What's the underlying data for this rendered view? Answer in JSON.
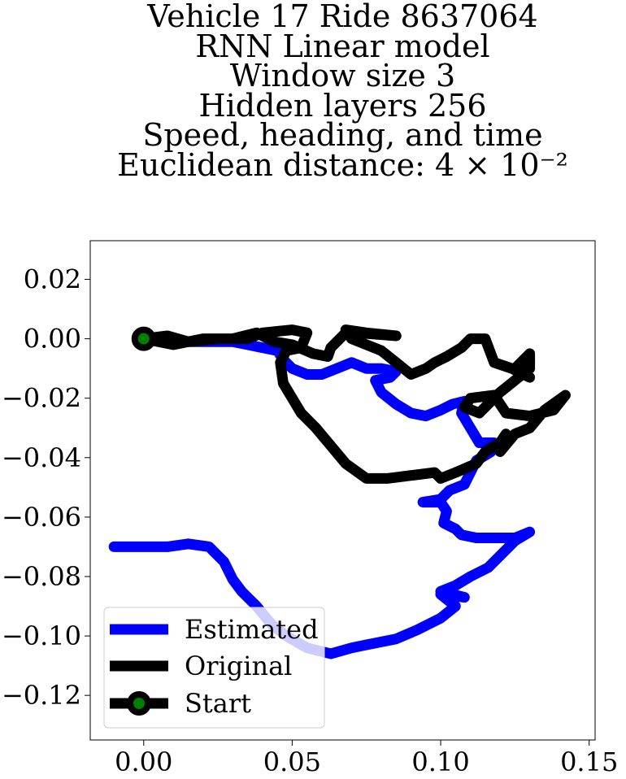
{
  "chart_data": {
    "type": "line",
    "title_lines": [
      "Vehicle 17 Ride 8637064",
      "RNN Linear model",
      "Window size 3",
      "Hidden layers 256",
      "Speed, heading, and time",
      "Euclidean distance: 4 × 10⁻²"
    ],
    "xlabel": "",
    "ylabel": "",
    "xlim": [
      -0.018,
      0.152
    ],
    "ylim": [
      -0.135,
      0.033
    ],
    "xticks": [
      0.0,
      0.05,
      0.1,
      0.15
    ],
    "xtick_labels": [
      "0.00",
      "0.05",
      "0.10",
      "0.15"
    ],
    "yticks": [
      0.02,
      0.0,
      -0.02,
      -0.04,
      -0.06,
      -0.08,
      -0.1,
      -0.12
    ],
    "ytick_labels": [
      "0.02",
      "0.00",
      "−0.02",
      "−0.04",
      "−0.06",
      "−0.08",
      "−0.10",
      "−0.12"
    ],
    "grid": false,
    "legend_position": "lower-left",
    "legend": [
      "Estimated",
      "Original",
      "Start"
    ],
    "series": [
      {
        "name": "Estimated",
        "color": "#0000ff",
        "points": [
          [
            0.0,
            0.0
          ],
          [
            0.01,
            -0.001
          ],
          [
            0.02,
            -0.001
          ],
          [
            0.03,
            -0.001
          ],
          [
            0.035,
            -0.002
          ],
          [
            0.04,
            -0.003
          ],
          [
            0.045,
            -0.004
          ],
          [
            0.047,
            -0.007
          ],
          [
            0.05,
            -0.01
          ],
          [
            0.055,
            -0.012
          ],
          [
            0.06,
            -0.012
          ],
          [
            0.065,
            -0.01
          ],
          [
            0.07,
            -0.008
          ],
          [
            0.075,
            -0.01
          ],
          [
            0.08,
            -0.01
          ],
          [
            0.085,
            -0.011
          ],
          [
            0.083,
            -0.013
          ],
          [
            0.078,
            -0.014
          ],
          [
            0.08,
            -0.018
          ],
          [
            0.085,
            -0.022
          ],
          [
            0.09,
            -0.025
          ],
          [
            0.095,
            -0.026
          ],
          [
            0.1,
            -0.024
          ],
          [
            0.104,
            -0.022
          ],
          [
            0.108,
            -0.021
          ],
          [
            0.107,
            -0.025
          ],
          [
            0.11,
            -0.03
          ],
          [
            0.113,
            -0.035
          ],
          [
            0.118,
            -0.035
          ],
          [
            0.117,
            -0.038
          ],
          [
            0.112,
            -0.041
          ],
          [
            0.11,
            -0.045
          ],
          [
            0.108,
            -0.049
          ],
          [
            0.103,
            -0.051
          ],
          [
            0.1,
            -0.054
          ],
          [
            0.094,
            -0.055
          ],
          [
            0.1,
            -0.055
          ],
          [
            0.102,
            -0.058
          ],
          [
            0.101,
            -0.062
          ],
          [
            0.105,
            -0.064
          ],
          [
            0.107,
            -0.066
          ],
          [
            0.112,
            -0.067
          ],
          [
            0.12,
            -0.067
          ],
          [
            0.125,
            -0.067
          ],
          [
            0.13,
            -0.065
          ],
          [
            0.125,
            -0.068
          ],
          [
            0.12,
            -0.073
          ],
          [
            0.116,
            -0.077
          ],
          [
            0.11,
            -0.08
          ],
          [
            0.105,
            -0.083
          ],
          [
            0.1,
            -0.085
          ],
          [
            0.108,
            -0.087
          ],
          [
            0.1,
            -0.086
          ],
          [
            0.105,
            -0.09
          ],
          [
            0.1,
            -0.094
          ],
          [
            0.092,
            -0.098
          ],
          [
            0.085,
            -0.101
          ],
          [
            0.08,
            -0.102
          ],
          [
            0.075,
            -0.103
          ],
          [
            0.07,
            -0.104
          ],
          [
            0.063,
            -0.106
          ],
          [
            0.055,
            -0.104
          ],
          [
            0.048,
            -0.1
          ],
          [
            0.043,
            -0.096
          ],
          [
            0.038,
            -0.09
          ],
          [
            0.033,
            -0.085
          ],
          [
            0.03,
            -0.081
          ],
          [
            0.027,
            -0.075
          ],
          [
            0.022,
            -0.07
          ],
          [
            0.015,
            -0.069
          ],
          [
            0.008,
            -0.07
          ],
          [
            0.0,
            -0.07
          ],
          [
            -0.01,
            -0.07
          ]
        ]
      },
      {
        "name": "Original",
        "color": "#000000",
        "points": [
          [
            0.0,
            0.0
          ],
          [
            0.008,
            0.001
          ],
          [
            0.015,
            -0.001
          ],
          [
            0.025,
            0.0
          ],
          [
            0.035,
            0.0
          ],
          [
            0.04,
            0.002
          ],
          [
            0.05,
            0.003
          ],
          [
            0.055,
            0.002
          ],
          [
            0.053,
            -0.003
          ],
          [
            0.048,
            -0.004
          ],
          [
            0.046,
            -0.008
          ],
          [
            0.047,
            -0.015
          ],
          [
            0.05,
            -0.02
          ],
          [
            0.053,
            -0.025
          ],
          [
            0.058,
            -0.03
          ],
          [
            0.063,
            -0.036
          ],
          [
            0.068,
            -0.042
          ],
          [
            0.075,
            -0.047
          ],
          [
            0.082,
            -0.047
          ],
          [
            0.09,
            -0.046
          ],
          [
            0.098,
            -0.045
          ],
          [
            0.1,
            -0.047
          ],
          [
            0.105,
            -0.045
          ],
          [
            0.112,
            -0.042
          ],
          [
            0.115,
            -0.038
          ],
          [
            0.12,
            -0.035
          ],
          [
            0.122,
            -0.032
          ],
          [
            0.12,
            -0.038
          ],
          [
            0.125,
            -0.032
          ],
          [
            0.13,
            -0.03
          ],
          [
            0.135,
            -0.024
          ],
          [
            0.142,
            -0.019
          ],
          [
            0.138,
            -0.024
          ],
          [
            0.13,
            -0.026
          ],
          [
            0.122,
            -0.025
          ],
          [
            0.12,
            -0.022
          ],
          [
            0.118,
            -0.019
          ],
          [
            0.11,
            -0.02
          ],
          [
            0.108,
            -0.023
          ],
          [
            0.113,
            -0.025
          ],
          [
            0.12,
            -0.018
          ],
          [
            0.13,
            -0.01
          ],
          [
            0.13,
            -0.005
          ],
          [
            0.125,
            -0.01
          ],
          [
            0.13,
            -0.013
          ],
          [
            0.124,
            -0.01
          ],
          [
            0.118,
            -0.008
          ],
          [
            0.115,
            0.0
          ],
          [
            0.11,
            0.0
          ],
          [
            0.107,
            -0.003
          ],
          [
            0.102,
            -0.006
          ],
          [
            0.098,
            -0.008
          ],
          [
            0.095,
            -0.01
          ],
          [
            0.09,
            -0.012
          ],
          [
            0.085,
            -0.008
          ],
          [
            0.08,
            -0.004
          ],
          [
            0.075,
            -0.002
          ],
          [
            0.07,
            0.0
          ],
          [
            0.068,
            0.003
          ],
          [
            0.075,
            0.002
          ],
          [
            0.085,
            0.001
          ],
          [
            0.072,
            0.002
          ],
          [
            0.068,
            0.002
          ],
          [
            0.063,
            -0.003
          ],
          [
            0.062,
            -0.006
          ],
          [
            0.057,
            -0.005
          ],
          [
            0.05,
            -0.002
          ],
          [
            0.044,
            -0.001
          ],
          [
            0.038,
            0.002
          ],
          [
            0.03,
            0.0
          ],
          [
            0.02,
            0.0
          ],
          [
            0.01,
            -0.002
          ],
          [
            0.0,
            0.0
          ]
        ]
      },
      {
        "name": "Start",
        "color": "#000000",
        "marker_fill": "#008000",
        "points": [
          [
            0.0,
            0.0
          ]
        ]
      }
    ]
  }
}
